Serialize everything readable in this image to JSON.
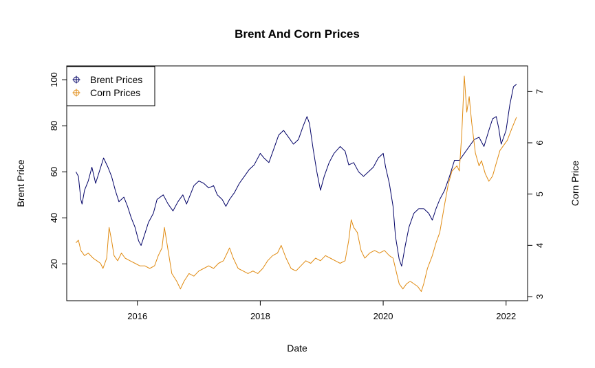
{
  "chart_data": {
    "type": "line",
    "title": "Brent And Corn Prices",
    "xlabel": "Date",
    "ylabel": "Brent Price",
    "y2label": "Corn Price",
    "xlim": [
      2014.85,
      2022.35
    ],
    "ylim": [
      4,
      106
    ],
    "y2lim": [
      2.92,
      7.5
    ],
    "x_ticks": [
      2016,
      2018,
      2020,
      2022
    ],
    "x_tick_labels": [
      "2016",
      "2018",
      "2020",
      "2022"
    ],
    "y_ticks": [
      20,
      40,
      60,
      80,
      100
    ],
    "y_tick_labels": [
      "20",
      "40",
      "60",
      "80",
      "100"
    ],
    "y2_ticks": [
      3,
      4,
      5,
      6,
      7
    ],
    "y2_tick_labels": [
      "3",
      "4",
      "5",
      "6",
      "7"
    ],
    "legend_position": "top-left",
    "grid": false,
    "series": [
      {
        "name": "Brent Prices",
        "axis": "left",
        "color": "#000066",
        "points": [
          [
            2015.0,
            60
          ],
          [
            2015.04,
            58
          ],
          [
            2015.08,
            48
          ],
          [
            2015.1,
            46
          ],
          [
            2015.14,
            52
          ],
          [
            2015.2,
            56
          ],
          [
            2015.26,
            62
          ],
          [
            2015.32,
            55
          ],
          [
            2015.38,
            60
          ],
          [
            2015.45,
            66
          ],
          [
            2015.52,
            62
          ],
          [
            2015.58,
            58
          ],
          [
            2015.64,
            52
          ],
          [
            2015.7,
            47
          ],
          [
            2015.78,
            49
          ],
          [
            2015.84,
            45
          ],
          [
            2015.9,
            40
          ],
          [
            2015.96,
            36
          ],
          [
            2016.02,
            30
          ],
          [
            2016.06,
            28
          ],
          [
            2016.12,
            33
          ],
          [
            2016.18,
            38
          ],
          [
            2016.26,
            42
          ],
          [
            2016.32,
            48
          ],
          [
            2016.42,
            50
          ],
          [
            2016.5,
            46
          ],
          [
            2016.58,
            43
          ],
          [
            2016.66,
            47
          ],
          [
            2016.74,
            50
          ],
          [
            2016.8,
            46
          ],
          [
            2016.86,
            50
          ],
          [
            2016.92,
            54
          ],
          [
            2017.0,
            56
          ],
          [
            2017.08,
            55
          ],
          [
            2017.16,
            53
          ],
          [
            2017.24,
            54
          ],
          [
            2017.3,
            50
          ],
          [
            2017.38,
            48
          ],
          [
            2017.44,
            45
          ],
          [
            2017.5,
            48
          ],
          [
            2017.58,
            51
          ],
          [
            2017.66,
            55
          ],
          [
            2017.74,
            58
          ],
          [
            2017.82,
            61
          ],
          [
            2017.9,
            63
          ],
          [
            2018.0,
            68
          ],
          [
            2018.06,
            66
          ],
          [
            2018.14,
            64
          ],
          [
            2018.22,
            70
          ],
          [
            2018.3,
            76
          ],
          [
            2018.38,
            78
          ],
          [
            2018.46,
            75
          ],
          [
            2018.54,
            72
          ],
          [
            2018.62,
            74
          ],
          [
            2018.7,
            80
          ],
          [
            2018.76,
            84
          ],
          [
            2018.8,
            81
          ],
          [
            2018.86,
            70
          ],
          [
            2018.92,
            60
          ],
          [
            2018.98,
            52
          ],
          [
            2019.04,
            58
          ],
          [
            2019.12,
            64
          ],
          [
            2019.2,
            68
          ],
          [
            2019.3,
            71
          ],
          [
            2019.38,
            69
          ],
          [
            2019.44,
            63
          ],
          [
            2019.52,
            64
          ],
          [
            2019.6,
            60
          ],
          [
            2019.68,
            58
          ],
          [
            2019.76,
            60
          ],
          [
            2019.84,
            62
          ],
          [
            2019.92,
            66
          ],
          [
            2020.0,
            68
          ],
          [
            2020.04,
            62
          ],
          [
            2020.1,
            55
          ],
          [
            2020.16,
            45
          ],
          [
            2020.2,
            32
          ],
          [
            2020.26,
            22
          ],
          [
            2020.3,
            19
          ],
          [
            2020.36,
            28
          ],
          [
            2020.42,
            36
          ],
          [
            2020.5,
            42
          ],
          [
            2020.58,
            44
          ],
          [
            2020.66,
            44
          ],
          [
            2020.74,
            42
          ],
          [
            2020.8,
            39
          ],
          [
            2020.86,
            44
          ],
          [
            2020.92,
            48
          ],
          [
            2021.0,
            52
          ],
          [
            2021.08,
            58
          ],
          [
            2021.16,
            65
          ],
          [
            2021.24,
            65
          ],
          [
            2021.32,
            68
          ],
          [
            2021.4,
            71
          ],
          [
            2021.48,
            74
          ],
          [
            2021.56,
            75
          ],
          [
            2021.64,
            71
          ],
          [
            2021.72,
            78
          ],
          [
            2021.78,
            83
          ],
          [
            2021.84,
            84
          ],
          [
            2021.88,
            79
          ],
          [
            2021.92,
            72
          ],
          [
            2022.0,
            78
          ],
          [
            2022.06,
            89
          ],
          [
            2022.12,
            97
          ],
          [
            2022.17,
            98
          ]
        ]
      },
      {
        "name": "Corn Prices",
        "axis": "right",
        "color": "#E08A10",
        "points": [
          [
            2015.0,
            4.05
          ],
          [
            2015.04,
            4.1
          ],
          [
            2015.08,
            3.9
          ],
          [
            2015.14,
            3.8
          ],
          [
            2015.2,
            3.85
          ],
          [
            2015.28,
            3.75
          ],
          [
            2015.34,
            3.7
          ],
          [
            2015.4,
            3.65
          ],
          [
            2015.44,
            3.55
          ],
          [
            2015.5,
            3.75
          ],
          [
            2015.54,
            4.35
          ],
          [
            2015.58,
            4.1
          ],
          [
            2015.62,
            3.8
          ],
          [
            2015.68,
            3.7
          ],
          [
            2015.74,
            3.85
          ],
          [
            2015.8,
            3.75
          ],
          [
            2015.88,
            3.7
          ],
          [
            2015.96,
            3.65
          ],
          [
            2016.04,
            3.6
          ],
          [
            2016.12,
            3.6
          ],
          [
            2016.2,
            3.55
          ],
          [
            2016.28,
            3.6
          ],
          [
            2016.34,
            3.8
          ],
          [
            2016.4,
            3.95
          ],
          [
            2016.44,
            4.35
          ],
          [
            2016.5,
            3.9
          ],
          [
            2016.56,
            3.45
          ],
          [
            2016.64,
            3.3
          ],
          [
            2016.7,
            3.15
          ],
          [
            2016.76,
            3.3
          ],
          [
            2016.84,
            3.45
          ],
          [
            2016.92,
            3.4
          ],
          [
            2017.0,
            3.5
          ],
          [
            2017.08,
            3.55
          ],
          [
            2017.16,
            3.6
          ],
          [
            2017.24,
            3.55
          ],
          [
            2017.32,
            3.65
          ],
          [
            2017.4,
            3.7
          ],
          [
            2017.46,
            3.85
          ],
          [
            2017.5,
            3.95
          ],
          [
            2017.56,
            3.75
          ],
          [
            2017.64,
            3.55
          ],
          [
            2017.72,
            3.5
          ],
          [
            2017.8,
            3.45
          ],
          [
            2017.88,
            3.5
          ],
          [
            2017.96,
            3.45
          ],
          [
            2018.04,
            3.55
          ],
          [
            2018.12,
            3.7
          ],
          [
            2018.2,
            3.8
          ],
          [
            2018.28,
            3.85
          ],
          [
            2018.34,
            4.0
          ],
          [
            2018.42,
            3.75
          ],
          [
            2018.5,
            3.55
          ],
          [
            2018.58,
            3.5
          ],
          [
            2018.66,
            3.6
          ],
          [
            2018.74,
            3.7
          ],
          [
            2018.82,
            3.65
          ],
          [
            2018.9,
            3.75
          ],
          [
            2018.98,
            3.7
          ],
          [
            2019.06,
            3.8
          ],
          [
            2019.14,
            3.75
          ],
          [
            2019.22,
            3.7
          ],
          [
            2019.3,
            3.65
          ],
          [
            2019.38,
            3.7
          ],
          [
            2019.44,
            4.1
          ],
          [
            2019.48,
            4.5
          ],
          [
            2019.52,
            4.35
          ],
          [
            2019.58,
            4.25
          ],
          [
            2019.64,
            3.9
          ],
          [
            2019.7,
            3.75
          ],
          [
            2019.78,
            3.85
          ],
          [
            2019.86,
            3.9
          ],
          [
            2019.94,
            3.85
          ],
          [
            2020.02,
            3.9
          ],
          [
            2020.1,
            3.8
          ],
          [
            2020.16,
            3.75
          ],
          [
            2020.22,
            3.45
          ],
          [
            2020.26,
            3.25
          ],
          [
            2020.32,
            3.15
          ],
          [
            2020.38,
            3.25
          ],
          [
            2020.44,
            3.3
          ],
          [
            2020.5,
            3.25
          ],
          [
            2020.56,
            3.2
          ],
          [
            2020.62,
            3.1
          ],
          [
            2020.66,
            3.25
          ],
          [
            2020.72,
            3.55
          ],
          [
            2020.8,
            3.8
          ],
          [
            2020.86,
            4.05
          ],
          [
            2020.92,
            4.25
          ],
          [
            2021.0,
            4.8
          ],
          [
            2021.06,
            5.2
          ],
          [
            2021.12,
            5.45
          ],
          [
            2021.2,
            5.55
          ],
          [
            2021.24,
            5.45
          ],
          [
            2021.28,
            6.2
          ],
          [
            2021.32,
            7.3
          ],
          [
            2021.36,
            6.6
          ],
          [
            2021.4,
            6.9
          ],
          [
            2021.44,
            6.4
          ],
          [
            2021.5,
            5.8
          ],
          [
            2021.56,
            5.55
          ],
          [
            2021.6,
            5.65
          ],
          [
            2021.66,
            5.4
          ],
          [
            2021.72,
            5.25
          ],
          [
            2021.78,
            5.35
          ],
          [
            2021.84,
            5.6
          ],
          [
            2021.9,
            5.85
          ],
          [
            2021.96,
            5.95
          ],
          [
            2022.02,
            6.05
          ],
          [
            2022.1,
            6.3
          ],
          [
            2022.17,
            6.5
          ]
        ]
      }
    ]
  }
}
